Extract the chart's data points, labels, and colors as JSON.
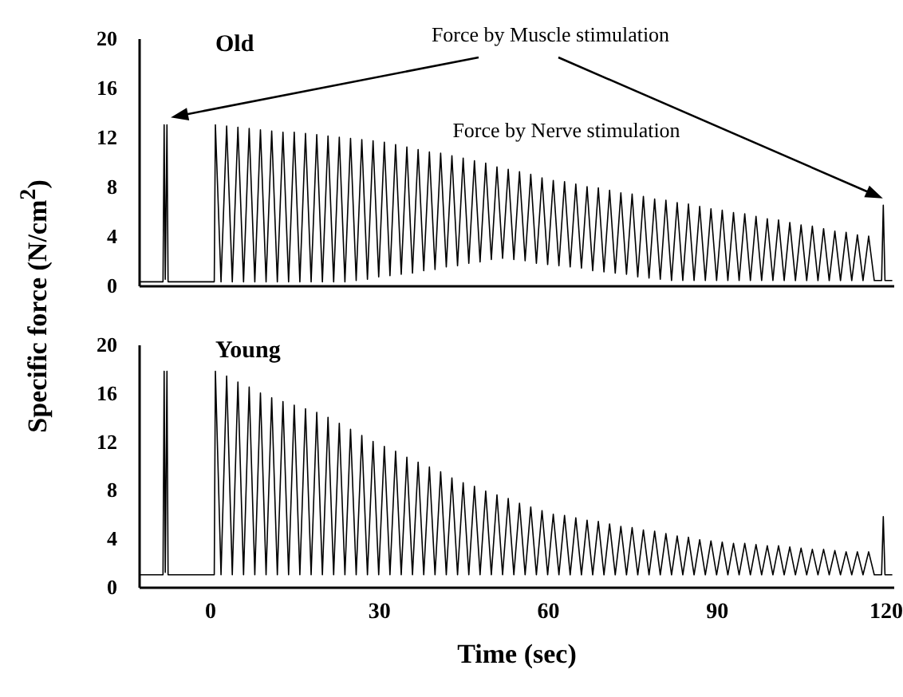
{
  "chart_data": [
    {
      "type": "line",
      "title": "Old",
      "ylabel": "Specific force  (N/cm$^{2}$)",
      "xlim": [
        -12.6,
        121.4
      ],
      "ylim": [
        0,
        20
      ],
      "yticks": [
        0,
        4,
        8,
        12,
        16,
        20
      ],
      "tick_labels": "y",
      "annotations": [
        "Force by Muscle stimulation",
        "Force by Nerve stimulation"
      ],
      "series": [
        {
          "color": "#000000",
          "x": [
            -12.6,
            -8.3,
            -8.1,
            -7.9,
            -7.6,
            -7.4,
            -7.1,
            0.8,
            1,
            2,
            3,
            4,
            5,
            6,
            7,
            8,
            9,
            10,
            11,
            12,
            13,
            14,
            15,
            16,
            17,
            18,
            19,
            20,
            21,
            22,
            23,
            24,
            25,
            26,
            27,
            28,
            29,
            30,
            31,
            32,
            33,
            34,
            35,
            36,
            37,
            38,
            39,
            40,
            41,
            42,
            43,
            44,
            45,
            46,
            47,
            48,
            49,
            50,
            51,
            52,
            53,
            54,
            55,
            56,
            57,
            58,
            59,
            60,
            61,
            62,
            63,
            64,
            65,
            66,
            67,
            68,
            69,
            70,
            71,
            72,
            73,
            74,
            75,
            76,
            77,
            78,
            79,
            80,
            81,
            82,
            83,
            84,
            85,
            86,
            87,
            88,
            89,
            90,
            91,
            92,
            93,
            94,
            95,
            96,
            97,
            98,
            99,
            100,
            101,
            102,
            103,
            104,
            105,
            106,
            107,
            108,
            109,
            110,
            111,
            112,
            113,
            114,
            115,
            116,
            117,
            118,
            119.3,
            119.6,
            119.9,
            121.2
          ],
          "values": [
            0.3,
            0.3,
            13,
            0.5,
            13,
            0.3,
            0.3,
            0.3,
            13.0,
            0.3,
            12.9,
            0.3,
            12.8,
            0.3,
            12.7,
            0.3,
            12.6,
            0.3,
            12.5,
            0.3,
            12.4,
            0.3,
            12.4,
            0.3,
            12.3,
            0.3,
            12.2,
            0.3,
            12.1,
            0.3,
            12.0,
            0.3,
            11.9,
            0.4,
            11.8,
            0.5,
            11.7,
            0.7,
            11.6,
            0.8,
            11.4,
            0.9,
            11.2,
            1.0,
            11.0,
            1.2,
            10.8,
            1.3,
            10.7,
            1.5,
            10.5,
            1.6,
            10.3,
            1.8,
            10.1,
            1.9,
            9.9,
            2.1,
            9.6,
            2.2,
            9.4,
            2.1,
            9.2,
            2.0,
            9.0,
            1.8,
            8.7,
            1.7,
            8.5,
            1.6,
            8.4,
            1.5,
            8.2,
            1.4,
            8.0,
            1.2,
            7.9,
            1.1,
            7.7,
            1.0,
            7.5,
            0.9,
            7.4,
            0.7,
            7.2,
            0.6,
            7.0,
            0.5,
            6.9,
            0.4,
            6.7,
            0.4,
            6.6,
            0.4,
            6.4,
            0.4,
            6.2,
            0.4,
            6.1,
            0.4,
            5.9,
            0.4,
            5.8,
            0.4,
            5.6,
            0.4,
            5.4,
            0.4,
            5.3,
            0.4,
            5.1,
            0.4,
            4.9,
            0.4,
            4.8,
            0.4,
            4.6,
            0.4,
            4.4,
            0.4,
            4.3,
            0.4,
            4.1,
            0.4,
            4.0,
            0.4,
            0.4,
            6.5,
            0.4,
            0.4
          ]
        }
      ]
    },
    {
      "type": "line",
      "title": "Young",
      "xlabel": "Time (sec)",
      "xlim": [
        -12.6,
        121.4
      ],
      "xticks": [
        0,
        30,
        60,
        90,
        120
      ],
      "ylim": [
        0,
        20
      ],
      "yticks": [
        0,
        4,
        8,
        12,
        16,
        20
      ],
      "series": [
        {
          "color": "#000000",
          "x": [
            -12.6,
            -8.3,
            -8.1,
            -7.9,
            -7.6,
            -7.4,
            -7.1,
            0.8,
            1,
            2,
            3,
            4,
            5,
            6,
            7,
            8,
            9,
            10,
            11,
            12,
            13,
            14,
            15,
            16,
            17,
            18,
            19,
            20,
            21,
            22,
            23,
            24,
            25,
            26,
            27,
            28,
            29,
            30,
            31,
            32,
            33,
            34,
            35,
            36,
            37,
            38,
            39,
            40,
            41,
            42,
            43,
            44,
            45,
            46,
            47,
            48,
            49,
            50,
            51,
            52,
            53,
            54,
            55,
            56,
            57,
            58,
            59,
            60,
            61,
            62,
            63,
            64,
            65,
            66,
            67,
            68,
            69,
            70,
            71,
            72,
            73,
            74,
            75,
            76,
            77,
            78,
            79,
            80,
            81,
            82,
            83,
            84,
            85,
            86,
            87,
            88,
            89,
            90,
            91,
            92,
            93,
            94,
            95,
            96,
            97,
            98,
            99,
            100,
            101,
            102,
            103,
            104,
            105,
            106,
            107,
            108,
            109,
            110,
            111,
            112,
            113,
            114,
            115,
            116,
            117,
            118,
            119.3,
            119.6,
            119.9,
            121.2
          ],
          "values": [
            1.0,
            1.0,
            17.8,
            1.2,
            17.8,
            1.0,
            1.0,
            1.0,
            17.8,
            1.0,
            17.4,
            1.0,
            16.9,
            1.0,
            16.5,
            1.0,
            16.0,
            1.0,
            15.6,
            1.0,
            15.3,
            1.0,
            15.0,
            1.0,
            14.7,
            1.0,
            14.4,
            1.0,
            14.0,
            1.0,
            13.5,
            1.0,
            13.0,
            1.0,
            12.5,
            1.0,
            12.0,
            1.0,
            11.6,
            1.0,
            11.2,
            1.0,
            10.7,
            1.0,
            10.3,
            1.0,
            9.9,
            1.0,
            9.5,
            1.0,
            9.0,
            1.0,
            8.6,
            1.0,
            8.3,
            1.0,
            7.9,
            1.0,
            7.6,
            1.0,
            7.3,
            1.0,
            6.9,
            1.0,
            6.6,
            1.0,
            6.3,
            1.0,
            6.0,
            1.0,
            5.9,
            1.0,
            5.7,
            1.0,
            5.5,
            1.0,
            5.4,
            1.0,
            5.2,
            1.0,
            5.0,
            1.0,
            4.9,
            1.0,
            4.7,
            1.0,
            4.6,
            1.0,
            4.4,
            1.0,
            4.2,
            1.0,
            4.1,
            1.0,
            3.9,
            1.0,
            3.8,
            1.0,
            3.7,
            1.0,
            3.6,
            1.0,
            3.6,
            1.0,
            3.5,
            1.0,
            3.4,
            1.0,
            3.4,
            1.0,
            3.3,
            1.0,
            3.2,
            1.0,
            3.1,
            1.0,
            3.1,
            1.0,
            3.0,
            1.0,
            2.9,
            1.0,
            2.9,
            1.0,
            2.9,
            1.0,
            1.0,
            5.8,
            1.0,
            1.0
          ]
        }
      ]
    }
  ]
}
